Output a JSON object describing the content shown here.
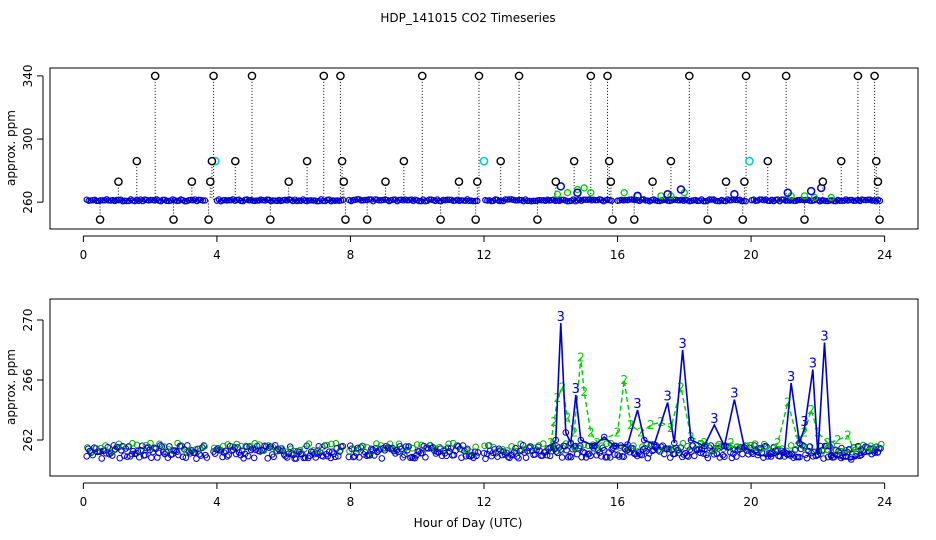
{
  "figure": {
    "title": "HDP_141015  CO2 Timeseries",
    "xlabel": "Hour of Day (UTC)"
  },
  "chart_data": [
    {
      "type": "scatter",
      "panel": "top",
      "ylabel": "approx. ppm",
      "xlim": [
        -1,
        25
      ],
      "ylim": [
        243,
        345
      ],
      "x_ticks": [
        0,
        4,
        8,
        12,
        16,
        20,
        24
      ],
      "y_ticks": [
        260,
        300,
        340
      ],
      "grid": false,
      "series": [
        {
          "color": "#0000cc",
          "style": "baseline-3",
          "points": [
            [
              0.1,
              261.2
            ],
            [
              23.9,
              261.5
            ]
          ]
        },
        {
          "color": "#00cc00",
          "style": "points-2",
          "points": [
            [
              14.2,
              265
            ],
            [
              14.5,
              266
            ],
            [
              14.8,
              268
            ],
            [
              15.0,
              269
            ],
            [
              15.2,
              266
            ],
            [
              16.2,
              266
            ],
            [
              16.6,
              264
            ],
            [
              17.3,
              264
            ],
            [
              17.6,
              264
            ],
            [
              18.0,
              266
            ],
            [
              21.2,
              264
            ],
            [
              21.6,
              264
            ],
            [
              21.9,
              263
            ],
            [
              22.4,
              263
            ]
          ]
        },
        {
          "color": "#0000cc",
          "style": "points-3",
          "points": [
            [
              14.3,
              270
            ],
            [
              14.8,
              266
            ],
            [
              16.6,
              264
            ],
            [
              17.5,
              265
            ],
            [
              17.9,
              268
            ],
            [
              19.5,
              265
            ],
            [
              21.1,
              266
            ],
            [
              21.8,
              267
            ],
            [
              22.1,
              269
            ]
          ]
        },
        {
          "color": "#00cccc",
          "style": "circles",
          "points": [
            [
              3.95,
              286
            ],
            [
              12.0,
              286
            ],
            [
              19.95,
              286
            ]
          ]
        },
        {
          "color": "#000000",
          "style": "spike-circles",
          "points": [
            [
              0.5,
              249
            ],
            [
              1.05,
              273
            ],
            [
              1.6,
              286
            ],
            [
              2.15,
              340
            ],
            [
              2.7,
              249
            ],
            [
              3.25,
              273
            ],
            [
              3.75,
              249
            ],
            [
              3.8,
              273
            ],
            [
              3.85,
              286
            ],
            [
              3.9,
              340
            ],
            [
              4.55,
              286
            ],
            [
              5.05,
              340
            ],
            [
              5.6,
              249
            ],
            [
              6.15,
              273
            ],
            [
              6.7,
              286
            ],
            [
              7.2,
              340
            ],
            [
              7.7,
              340
            ],
            [
              7.75,
              286
            ],
            [
              7.8,
              273
            ],
            [
              7.85,
              249
            ],
            [
              8.5,
              249
            ],
            [
              9.05,
              273
            ],
            [
              9.6,
              286
            ],
            [
              10.15,
              340
            ],
            [
              10.7,
              249
            ],
            [
              11.25,
              273
            ],
            [
              11.75,
              249
            ],
            [
              11.8,
              273
            ],
            [
              11.85,
              340
            ],
            [
              12.5,
              286
            ],
            [
              13.05,
              340
            ],
            [
              13.6,
              249
            ],
            [
              14.15,
              273
            ],
            [
              14.7,
              286
            ],
            [
              15.2,
              340
            ],
            [
              15.7,
              340
            ],
            [
              15.75,
              286
            ],
            [
              15.8,
              273
            ],
            [
              15.85,
              249
            ],
            [
              16.5,
              249
            ],
            [
              17.05,
              273
            ],
            [
              17.6,
              286
            ],
            [
              18.15,
              340
            ],
            [
              18.7,
              249
            ],
            [
              19.25,
              273
            ],
            [
              19.75,
              249
            ],
            [
              19.8,
              273
            ],
            [
              19.85,
              340
            ],
            [
              20.5,
              286
            ],
            [
              21.05,
              340
            ],
            [
              21.6,
              249
            ],
            [
              22.15,
              273
            ],
            [
              22.7,
              286
            ],
            [
              23.2,
              340
            ],
            [
              23.7,
              340
            ],
            [
              23.75,
              286
            ],
            [
              23.8,
              273
            ],
            [
              23.85,
              249
            ]
          ]
        }
      ]
    },
    {
      "type": "line",
      "panel": "bottom",
      "ylabel": "approx. ppm",
      "xlim": [
        -1,
        25
      ],
      "ylim": [
        259.6,
        271.4
      ],
      "x_ticks": [
        0,
        4,
        8,
        12,
        16,
        20,
        24
      ],
      "y_ticks": [
        262,
        266,
        270
      ],
      "grid": false,
      "series": [
        {
          "color": "#0000cc",
          "style": "circles-base",
          "segments": [
            [
              0.1,
              3.7
            ],
            [
              3.9,
              7.8
            ],
            [
              7.95,
              11.85
            ],
            [
              12.0,
              23.9
            ]
          ]
        },
        {
          "color": "#00cc00",
          "style": "dashed-2",
          "points": [
            [
              14.0,
              261.8
            ],
            [
              14.1,
              263.2
            ],
            [
              14.2,
              264.8
            ],
            [
              14.35,
              265.5
            ],
            [
              14.5,
              263.5
            ],
            [
              14.7,
              262.5
            ],
            [
              14.9,
              267.5
            ],
            [
              15.0,
              265.2
            ],
            [
              15.2,
              262.5
            ],
            [
              15.4,
              261.8
            ],
            [
              16.0,
              262.5
            ],
            [
              16.2,
              266.0
            ],
            [
              16.4,
              263.0
            ],
            [
              16.7,
              262.5
            ],
            [
              17.0,
              263.0
            ],
            [
              17.3,
              263.2
            ],
            [
              17.6,
              262.8
            ],
            [
              17.9,
              265.5
            ],
            [
              18.2,
              262.2
            ],
            [
              18.6,
              261.8
            ],
            [
              19.0,
              261.5
            ],
            [
              19.4,
              261.8
            ],
            [
              19.9,
              261.5
            ],
            [
              20.3,
              261.2
            ],
            [
              20.8,
              261.8
            ],
            [
              21.1,
              264.5
            ],
            [
              21.4,
              262.0
            ],
            [
              21.6,
              262.5
            ],
            [
              21.8,
              264.0
            ],
            [
              22.0,
              262.5
            ],
            [
              22.3,
              261.8
            ],
            [
              22.6,
              262.0
            ],
            [
              22.9,
              262.3
            ],
            [
              23.1,
              261.2
            ],
            [
              23.6,
              261.5
            ]
          ]
        },
        {
          "color": "#0000cc",
          "style": "solid-3",
          "points": [
            [
              14.0,
              261.5
            ],
            [
              14.15,
              262.0
            ],
            [
              14.3,
              269.8
            ],
            [
              14.45,
              262.5
            ],
            [
              14.6,
              261.8
            ],
            [
              14.75,
              265.0
            ],
            [
              14.9,
              262.0
            ],
            [
              15.3,
              261.6
            ],
            [
              15.6,
              262.2
            ],
            [
              15.9,
              261.6
            ],
            [
              16.3,
              261.7
            ],
            [
              16.6,
              264.0
            ],
            [
              16.8,
              262.0
            ],
            [
              17.1,
              261.7
            ],
            [
              17.5,
              264.5
            ],
            [
              17.7,
              261.8
            ],
            [
              17.95,
              268.0
            ],
            [
              18.2,
              262.0
            ],
            [
              18.6,
              261.6
            ],
            [
              18.9,
              263.0
            ],
            [
              19.2,
              261.6
            ],
            [
              19.5,
              264.7
            ],
            [
              19.8,
              261.5
            ],
            [
              20.2,
              261.0
            ],
            [
              20.6,
              260.9
            ],
            [
              21.0,
              261.2
            ],
            [
              21.2,
              265.8
            ],
            [
              21.45,
              261.8
            ],
            [
              21.6,
              262.8
            ],
            [
              21.85,
              266.7
            ],
            [
              22.0,
              261.0
            ],
            [
              22.2,
              268.5
            ],
            [
              22.4,
              261.0
            ],
            [
              22.7,
              260.8
            ],
            [
              23.0,
              260.7
            ],
            [
              23.3,
              261.0
            ],
            [
              23.8,
              261.2
            ]
          ]
        }
      ]
    }
  ]
}
